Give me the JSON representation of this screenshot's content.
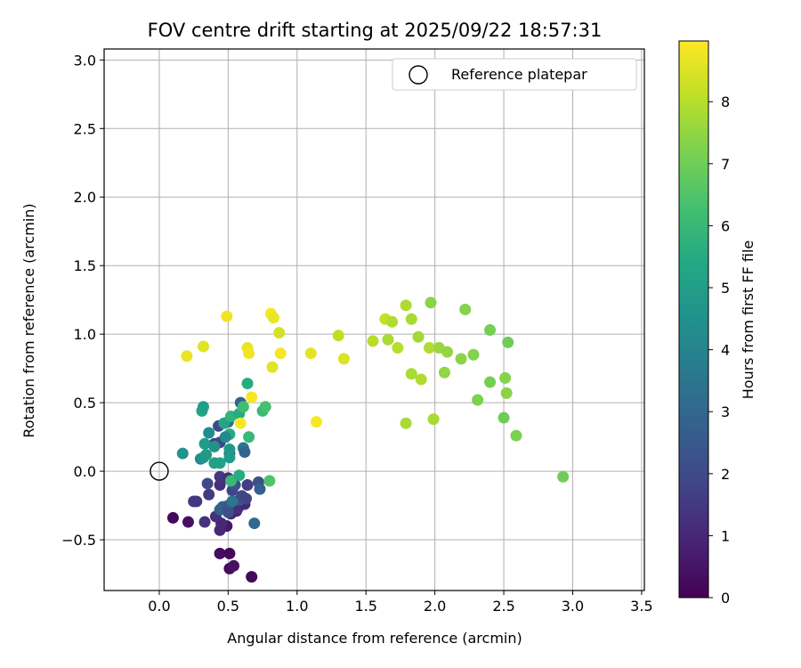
{
  "chart_data": {
    "type": "scatter",
    "title": "FOV centre drift starting at 2025/09/22 18:57:31",
    "xlabel": "Angular distance from reference (arcmin)",
    "ylabel": "Rotation from reference (arcmin)",
    "xlim": [
      -0.4,
      3.52
    ],
    "ylim": [
      -0.87,
      3.08
    ],
    "xticks": [
      "0.0",
      "0.5",
      "1.0",
      "1.5",
      "2.0",
      "2.5",
      "3.0",
      "3.5"
    ],
    "xtick_values": [
      0.0,
      0.5,
      1.0,
      1.5,
      2.0,
      2.5,
      3.0,
      3.5
    ],
    "yticks": [
      "−0.5",
      "0.0",
      "0.5",
      "1.0",
      "1.5",
      "2.0",
      "2.5",
      "3.0"
    ],
    "ytick_values": [
      -0.5,
      0.0,
      0.5,
      1.0,
      1.5,
      2.0,
      2.5,
      3.0
    ],
    "grid": true,
    "legend": {
      "label": "Reference platepar",
      "position": "upper right",
      "marker": "open circle"
    },
    "reference_point": {
      "x": 0.0,
      "y": 0.0
    },
    "colorbar": {
      "label": "Hours from first FF file",
      "colormap": "viridis",
      "range": [
        0,
        8.98
      ],
      "ticks": [
        "0",
        "1",
        "2",
        "3",
        "4",
        "5",
        "6",
        "7",
        "8"
      ],
      "tick_values": [
        0,
        1,
        2,
        3,
        4,
        5,
        6,
        7,
        8
      ]
    },
    "points": [
      {
        "x": 0.1,
        "y": -0.34,
        "h": 0.2
      },
      {
        "x": 0.21,
        "y": -0.37,
        "h": 0.4
      },
      {
        "x": 0.44,
        "y": -0.6,
        "h": 0.3
      },
      {
        "x": 0.51,
        "y": -0.6,
        "h": 0.2
      },
      {
        "x": 0.51,
        "y": -0.71,
        "h": 0.3
      },
      {
        "x": 0.54,
        "y": -0.69,
        "h": 0.4
      },
      {
        "x": 0.67,
        "y": -0.77,
        "h": 0.2
      },
      {
        "x": 0.49,
        "y": -0.4,
        "h": 0.6
      },
      {
        "x": 0.45,
        "y": -0.38,
        "h": 1.0
      },
      {
        "x": 0.44,
        "y": -0.43,
        "h": 1.0
      },
      {
        "x": 0.41,
        "y": -0.33,
        "h": 1.2
      },
      {
        "x": 0.33,
        "y": -0.37,
        "h": 1.3
      },
      {
        "x": 0.52,
        "y": -0.31,
        "h": 1.0
      },
      {
        "x": 0.56,
        "y": -0.29,
        "h": 0.9
      },
      {
        "x": 0.57,
        "y": -0.27,
        "h": 1.2
      },
      {
        "x": 0.62,
        "y": -0.24,
        "h": 1.0
      },
      {
        "x": 0.25,
        "y": -0.22,
        "h": 1.5
      },
      {
        "x": 0.27,
        "y": -0.22,
        "h": 1.4
      },
      {
        "x": 0.36,
        "y": -0.17,
        "h": 1.5
      },
      {
        "x": 0.35,
        "y": -0.09,
        "h": 2.0
      },
      {
        "x": 0.44,
        "y": -0.1,
        "h": 1.2
      },
      {
        "x": 0.44,
        "y": -0.04,
        "h": 1.4
      },
      {
        "x": 0.5,
        "y": -0.05,
        "h": 1.2
      },
      {
        "x": 0.53,
        "y": -0.14,
        "h": 1.9
      },
      {
        "x": 0.55,
        "y": -0.1,
        "h": 2.2
      },
      {
        "x": 0.46,
        "y": -0.26,
        "h": 2.5
      },
      {
        "x": 0.44,
        "y": -0.28,
        "h": 2.8
      },
      {
        "x": 0.5,
        "y": -0.25,
        "h": 2.5
      },
      {
        "x": 0.58,
        "y": -0.21,
        "h": 2.3
      },
      {
        "x": 0.6,
        "y": -0.18,
        "h": 2.0
      },
      {
        "x": 0.64,
        "y": -0.1,
        "h": 1.6
      },
      {
        "x": 0.63,
        "y": -0.2,
        "h": 1.8
      },
      {
        "x": 0.72,
        "y": -0.08,
        "h": 2.2
      },
      {
        "x": 0.73,
        "y": -0.13,
        "h": 2.7
      },
      {
        "x": 0.69,
        "y": -0.38,
        "h": 3.0
      },
      {
        "x": 0.53,
        "y": -0.22,
        "h": 3.5
      },
      {
        "x": 0.52,
        "y": -0.07,
        "h": 6.0
      },
      {
        "x": 0.58,
        "y": -0.03,
        "h": 5.5
      },
      {
        "x": 0.8,
        "y": -0.07,
        "h": 6.5
      },
      {
        "x": 0.5,
        "y": -0.3,
        "h": 2.2
      },
      {
        "x": 0.4,
        "y": 0.2,
        "h": 1.6
      },
      {
        "x": 0.44,
        "y": 0.21,
        "h": 1.8
      },
      {
        "x": 0.43,
        "y": 0.33,
        "h": 2.0
      },
      {
        "x": 0.51,
        "y": 0.13,
        "h": 2.6
      },
      {
        "x": 0.59,
        "y": 0.5,
        "h": 2.9
      },
      {
        "x": 0.61,
        "y": 0.17,
        "h": 3.6
      },
      {
        "x": 0.62,
        "y": 0.14,
        "h": 2.9
      },
      {
        "x": 0.5,
        "y": 0.36,
        "h": 3.2
      },
      {
        "x": 0.3,
        "y": 0.09,
        "h": 4.2
      },
      {
        "x": 0.32,
        "y": 0.1,
        "h": 4.6
      },
      {
        "x": 0.34,
        "y": 0.12,
        "h": 4.8
      },
      {
        "x": 0.33,
        "y": 0.2,
        "h": 4.9
      },
      {
        "x": 0.36,
        "y": 0.28,
        "h": 4.3
      },
      {
        "x": 0.4,
        "y": 0.18,
        "h": 4.5
      },
      {
        "x": 0.44,
        "y": 0.06,
        "h": 5.2
      },
      {
        "x": 0.4,
        "y": 0.06,
        "h": 5.1
      },
      {
        "x": 0.47,
        "y": 0.35,
        "h": 5.3
      },
      {
        "x": 0.51,
        "y": 0.27,
        "h": 5.5
      },
      {
        "x": 0.51,
        "y": 0.16,
        "h": 4.8
      },
      {
        "x": 0.51,
        "y": 0.1,
        "h": 4.9
      },
      {
        "x": 0.48,
        "y": 0.25,
        "h": 4.2
      },
      {
        "x": 0.17,
        "y": 0.13,
        "h": 4.6
      },
      {
        "x": 0.31,
        "y": 0.44,
        "h": 5.3
      },
      {
        "x": 0.32,
        "y": 0.47,
        "h": 5.0
      },
      {
        "x": 0.52,
        "y": 0.4,
        "h": 5.8
      },
      {
        "x": 0.58,
        "y": 0.42,
        "h": 5.5
      },
      {
        "x": 0.61,
        "y": 0.47,
        "h": 6.2
      },
      {
        "x": 0.64,
        "y": 0.64,
        "h": 5.5
      },
      {
        "x": 0.65,
        "y": 0.25,
        "h": 6.0
      },
      {
        "x": 0.75,
        "y": 0.44,
        "h": 6.0
      },
      {
        "x": 0.77,
        "y": 0.47,
        "h": 6.3
      },
      {
        "x": 0.2,
        "y": 0.84,
        "h": 8.7
      },
      {
        "x": 0.32,
        "y": 0.91,
        "h": 8.6
      },
      {
        "x": 0.49,
        "y": 1.13,
        "h": 8.8
      },
      {
        "x": 0.64,
        "y": 0.9,
        "h": 8.7
      },
      {
        "x": 0.65,
        "y": 0.86,
        "h": 8.8
      },
      {
        "x": 0.67,
        "y": 0.54,
        "h": 8.9
      },
      {
        "x": 0.59,
        "y": 0.35,
        "h": 8.9
      },
      {
        "x": 0.81,
        "y": 1.15,
        "h": 8.9
      },
      {
        "x": 0.83,
        "y": 1.12,
        "h": 8.7
      },
      {
        "x": 0.87,
        "y": 1.01,
        "h": 8.4
      },
      {
        "x": 0.82,
        "y": 0.76,
        "h": 8.6
      },
      {
        "x": 0.88,
        "y": 0.86,
        "h": 8.9
      },
      {
        "x": 1.1,
        "y": 0.86,
        "h": 8.6
      },
      {
        "x": 1.14,
        "y": 0.36,
        "h": 8.9
      },
      {
        "x": 1.3,
        "y": 0.99,
        "h": 8.1
      },
      {
        "x": 1.34,
        "y": 0.82,
        "h": 8.5
      },
      {
        "x": 1.55,
        "y": 0.95,
        "h": 8.0
      },
      {
        "x": 1.64,
        "y": 1.11,
        "h": 8.2
      },
      {
        "x": 1.66,
        "y": 0.96,
        "h": 7.8
      },
      {
        "x": 1.69,
        "y": 1.09,
        "h": 7.9
      },
      {
        "x": 1.73,
        "y": 0.9,
        "h": 8.0
      },
      {
        "x": 1.79,
        "y": 1.21,
        "h": 7.9
      },
      {
        "x": 1.79,
        "y": 0.35,
        "h": 7.8
      },
      {
        "x": 1.83,
        "y": 1.11,
        "h": 7.8
      },
      {
        "x": 1.83,
        "y": 0.71,
        "h": 7.8
      },
      {
        "x": 1.88,
        "y": 0.98,
        "h": 7.7
      },
      {
        "x": 1.9,
        "y": 0.67,
        "h": 7.9
      },
      {
        "x": 1.97,
        "y": 1.23,
        "h": 7.4
      },
      {
        "x": 1.96,
        "y": 0.9,
        "h": 7.9
      },
      {
        "x": 1.99,
        "y": 0.38,
        "h": 7.8
      },
      {
        "x": 2.03,
        "y": 0.9,
        "h": 7.6
      },
      {
        "x": 2.07,
        "y": 0.72,
        "h": 7.5
      },
      {
        "x": 2.09,
        "y": 0.87,
        "h": 7.5
      },
      {
        "x": 2.19,
        "y": 0.82,
        "h": 7.4
      },
      {
        "x": 2.22,
        "y": 1.18,
        "h": 7.3
      },
      {
        "x": 2.28,
        "y": 0.85,
        "h": 7.3
      },
      {
        "x": 2.31,
        "y": 0.52,
        "h": 7.2
      },
      {
        "x": 2.4,
        "y": 1.03,
        "h": 7.1
      },
      {
        "x": 2.4,
        "y": 0.65,
        "h": 7.1
      },
      {
        "x": 2.5,
        "y": 0.39,
        "h": 7.0
      },
      {
        "x": 2.51,
        "y": 0.68,
        "h": 7.3
      },
      {
        "x": 2.53,
        "y": 0.94,
        "h": 7.0
      },
      {
        "x": 2.52,
        "y": 0.57,
        "h": 7.4
      },
      {
        "x": 2.59,
        "y": 0.26,
        "h": 7.2
      },
      {
        "x": 2.93,
        "y": -0.04,
        "h": 7.0
      }
    ]
  }
}
